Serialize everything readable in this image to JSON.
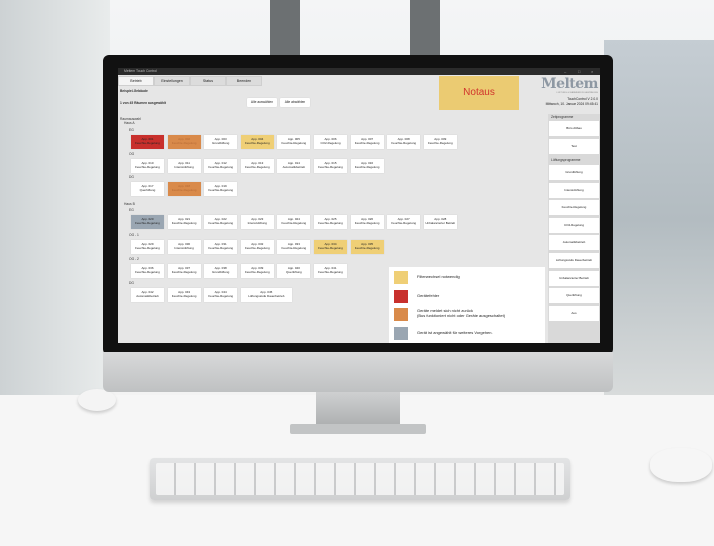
{
  "window": {
    "title": "Meltem Touch Control",
    "controls": [
      "–",
      "□",
      "×"
    ]
  },
  "tabs": [
    "Betrieb",
    "Einstellungen",
    "Status",
    "Beenden"
  ],
  "building": "Beispiel-Gebäude",
  "selection_status": "1 von 45 Räumen ausgewählt",
  "select_all": "Alle auswählen",
  "deselect_all": "Alle abwählen",
  "room_select_label": "Raumauswahl",
  "emergency_button": "Notaus",
  "logo": {
    "name": "Meltem",
    "tagline": "LÜFTUNG & WÄRMERÜCKGEWINNUNG"
  },
  "version": "TouchControl V 2.0.0",
  "datetime": "Mittwoch, 10. Januar 2024 09:45:41",
  "colors": {
    "error": "#c8302c",
    "no_response": "#d98a4a",
    "filter": "#efcf76",
    "selected": "#9aa6b2"
  },
  "houses": [
    {
      "label": "Haus A",
      "floors": [
        {
          "label": "EG",
          "units": [
            {
              "name": "App. 001",
              "mode": "Feuchte-Regelung",
              "state": "error"
            },
            {
              "name": "App. 002",
              "mode": "Feuchte-Regelung",
              "state": "no_response"
            },
            {
              "name": "App. 003",
              "mode": "Grundlüftung",
              "state": ""
            },
            {
              "name": "App. 004",
              "mode": "Feuchte-Regelung",
              "state": "filter"
            },
            {
              "name": "App. 005",
              "mode": "Feuchte-Regelung",
              "state": ""
            },
            {
              "name": "App. 006",
              "mode": "CO2-Regelung",
              "state": ""
            },
            {
              "name": "App. 007",
              "mode": "Feuchte-Regelung",
              "state": ""
            },
            {
              "name": "App. 008",
              "mode": "Feuchte-Regelung",
              "state": ""
            },
            {
              "name": "App. 009",
              "mode": "Feuchte-Regelung",
              "state": ""
            }
          ]
        },
        {
          "label": "OG",
          "units": [
            {
              "name": "App. 010",
              "mode": "Feuchte-Regelung",
              "state": ""
            },
            {
              "name": "App. 011",
              "mode": "Intensivlüftung",
              "state": ""
            },
            {
              "name": "App. 012",
              "mode": "Feuchte-Regelung",
              "state": ""
            },
            {
              "name": "App. 013",
              "mode": "Feuchte-Regelung",
              "state": ""
            },
            {
              "name": "App. 014",
              "mode": "Automatikbetrieb",
              "state": ""
            },
            {
              "name": "App. 015",
              "mode": "Feuchte-Regelung",
              "state": ""
            },
            {
              "name": "App. 016",
              "mode": "Feuchte-Regelung",
              "state": ""
            }
          ]
        },
        {
          "label": "DG",
          "units": [
            {
              "name": "App. 017",
              "mode": "Querlüftung",
              "state": ""
            },
            {
              "name": "App. 018",
              "mode": "Feuchte-Regelung",
              "state": "no_response"
            },
            {
              "name": "App. 019",
              "mode": "Feuchte-Regelung",
              "state": ""
            }
          ]
        }
      ]
    },
    {
      "label": "Haus B",
      "floors": [
        {
          "label": "EG",
          "units": [
            {
              "name": "App. 020",
              "mode": "Feuchte-Regelung",
              "state": "selected"
            },
            {
              "name": "App. 021",
              "mode": "Feuchte-Regelung",
              "state": ""
            },
            {
              "name": "App. 022",
              "mode": "Feuchte-Regelung",
              "state": ""
            },
            {
              "name": "App. 023",
              "mode": "Intensivlüftung",
              "state": ""
            },
            {
              "name": "App. 024",
              "mode": "Feuchte-Regelung",
              "state": ""
            },
            {
              "name": "App. 025",
              "mode": "Feuchte-Regelung",
              "state": ""
            },
            {
              "name": "App. 026",
              "mode": "Feuchte-Regelung",
              "state": ""
            },
            {
              "name": "App. 027",
              "mode": "Feuchte-Regelung",
              "state": ""
            },
            {
              "name": "App. 028",
              "mode": "Unbalancierter Betrieb",
              "state": ""
            }
          ]
        },
        {
          "label": "OG - 1",
          "units": [
            {
              "name": "App. 029",
              "mode": "Feuchte-Regelung",
              "state": ""
            },
            {
              "name": "App. 030",
              "mode": "Intensivlüftung",
              "state": ""
            },
            {
              "name": "App. 031",
              "mode": "Feuchte-Regelung",
              "state": ""
            },
            {
              "name": "App. 032",
              "mode": "Feuchte-Regelung",
              "state": ""
            },
            {
              "name": "App. 033",
              "mode": "Feuchte-Regelung",
              "state": ""
            },
            {
              "name": "App. 034",
              "mode": "Feuchte-Regelung",
              "state": "filter"
            },
            {
              "name": "App. 035",
              "mode": "Feuchte-Regelung",
              "state": "filter"
            }
          ]
        },
        {
          "label": "OG - 2",
          "units": [
            {
              "name": "App. 036",
              "mode": "Feuchte-Regelung",
              "state": ""
            },
            {
              "name": "App. 037",
              "mode": "Feuchte-Regelung",
              "state": ""
            },
            {
              "name": "App. 038",
              "mode": "Grundlüftung",
              "state": ""
            },
            {
              "name": "App. 039",
              "mode": "Feuchte-Regelung",
              "state": ""
            },
            {
              "name": "App. 040",
              "mode": "Querlüftung",
              "state": ""
            },
            {
              "name": "App. 041",
              "mode": "Feuchte-Regelung",
              "state": ""
            }
          ]
        },
        {
          "label": "DG",
          "units": [
            {
              "name": "App. 042",
              "mode": "Automatikbetrieb",
              "state": ""
            },
            {
              "name": "App. 043",
              "mode": "Feuchte-Regelung",
              "state": ""
            },
            {
              "name": "App. 044",
              "mode": "Feuchte-Regelung",
              "state": ""
            },
            {
              "name": "App. 045",
              "mode": "Lüftungsstufe Dauerbetrieb",
              "state": "",
              "wide": true
            }
          ]
        }
      ]
    }
  ],
  "sidebar": {
    "time_programs_label": "Zeitprogramme",
    "time_programs": [
      "Büro Altbau",
      "Test"
    ],
    "ventilation_programs_label": "Lüftungsprogramme",
    "ventilation_programs": [
      "Grundlüftung",
      "Intensivlüftung",
      "Feuchte-Regelung",
      "CO2-Regelung",
      "Automatikbetrieb",
      "Lüftungsstufe Dauerbetrieb",
      "Unbalancierter Betrieb",
      "Querlüftung",
      "Aus"
    ]
  },
  "legend": [
    {
      "color": "#efcf76",
      "text": "Filterwechsel notwendig"
    },
    {
      "color": "#c8302c",
      "text": "Gerätefehler"
    },
    {
      "color": "#d98a4a",
      "text": "Geräte meldet sich nicht zurück\n(Bus funktioniert nicht oder Geräte ausgeschaltet)"
    },
    {
      "color": "#9aa6b2",
      "text": "Gerät ist angewählt für weiteres Vorgehen."
    }
  ]
}
